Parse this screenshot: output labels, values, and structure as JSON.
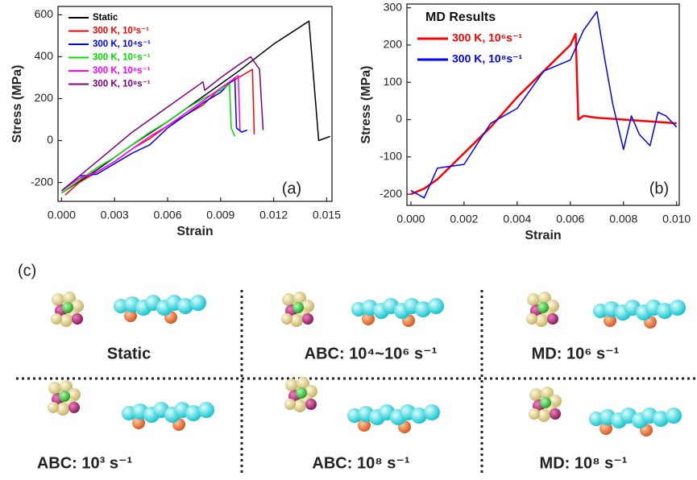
{
  "chart_data": [
    {
      "type": "line",
      "panel_label": "(a)",
      "xlabel": "Strain",
      "ylabel": "Stress (MPa)",
      "legend": "upper left",
      "xlim": [
        -0.0002,
        0.0153
      ],
      "ylim": [
        -290,
        640
      ],
      "xticks": [
        {
          "value": 0,
          "label": "0.000"
        },
        0.003,
        0.006,
        0.009,
        0.012,
        0.015
      ],
      "yticks": [
        -200,
        0,
        200,
        400,
        600
      ],
      "series": [
        {
          "name": "Static",
          "color": "#000000",
          "x": [
            0,
            0.002,
            0.004,
            0.006,
            0.008,
            0.01,
            0.012,
            0.014,
            0.01455,
            0.0152
          ],
          "values": [
            -250,
            -140,
            -20,
            90,
            210,
            330,
            460,
            570,
            0,
            20
          ]
        },
        {
          "name": "300 K, 10³s⁻¹",
          "color": "#ff0000",
          "x": [
            0.0002,
            0.001,
            0.002,
            0.003,
            0.004,
            0.005,
            0.006,
            0.007,
            0.008,
            0.009,
            0.0108,
            0.0109
          ],
          "values": [
            -260,
            -200,
            -150,
            -100,
            -40,
            10,
            70,
            120,
            170,
            250,
            340,
            30
          ]
        },
        {
          "name": "300 K, 10⁴s⁻¹",
          "color": "#0000ff",
          "x": [
            0,
            0.001,
            0.002,
            0.003,
            0.004,
            0.005,
            0.006,
            0.007,
            0.008,
            0.009,
            0.0098,
            0.0099,
            0.0102,
            0.0105
          ],
          "values": [
            -240,
            -170,
            -160,
            -110,
            -60,
            -20,
            60,
            120,
            180,
            230,
            300,
            60,
            40,
            50
          ]
        },
        {
          "name": "300 K, 10⁵s⁻¹",
          "color": "#00dd00",
          "x": [
            0,
            0.001,
            0.002,
            0.003,
            0.004,
            0.005,
            0.006,
            0.007,
            0.008,
            0.009,
            0.0095,
            0.0096,
            0.0098
          ],
          "values": [
            -250,
            -190,
            -130,
            -80,
            -20,
            40,
            90,
            150,
            200,
            240,
            270,
            60,
            20
          ]
        },
        {
          "name": "300 K, 10⁶s⁻¹",
          "color": "#ff00ff",
          "x": [
            0,
            0.001,
            0.002,
            0.003,
            0.004,
            0.005,
            0.006,
            0.007,
            0.008,
            0.009,
            0.01,
            0.0101
          ],
          "values": [
            -240,
            -180,
            -150,
            -100,
            -40,
            20,
            70,
            130,
            190,
            250,
            310,
            50
          ]
        },
        {
          "name": "300 K, 10⁸s⁻¹",
          "color": "#800080",
          "x": [
            0,
            0.001,
            0.002,
            0.003,
            0.004,
            0.005,
            0.006,
            0.007,
            0.008,
            0.0081,
            0.009,
            0.01,
            0.0107,
            0.0112,
            0.0114
          ],
          "values": [
            -240,
            -170,
            -100,
            -30,
            40,
            100,
            160,
            220,
            280,
            240,
            300,
            360,
            400,
            340,
            50
          ]
        }
      ]
    },
    {
      "type": "line",
      "panel_label": "(b)",
      "xlabel": "Strain",
      "ylabel": "Stress (MPa)",
      "legend": "upper left",
      "legend_title": "MD Results",
      "xlim": [
        -0.00015,
        0.0101
      ],
      "ylim": [
        -230,
        310
      ],
      "xticks": [
        {
          "value": 0,
          "label": "0.000"
        },
        0.002,
        0.004,
        0.006,
        0.008,
        {
          "value": 0.01,
          "label": "0.010"
        }
      ],
      "yticks": [
        -200,
        -100,
        0,
        100,
        200,
        300
      ],
      "series": [
        {
          "name": "300 K, 10⁶s⁻¹",
          "color": "#ff0000",
          "x": [
            0,
            0.0005,
            0.001,
            0.002,
            0.003,
            0.004,
            0.005,
            0.006,
            0.0062,
            0.0063,
            0.0065,
            0.007,
            0.008,
            0.009,
            0.01
          ],
          "values": [
            -200,
            -185,
            -160,
            -90,
            -20,
            60,
            130,
            200,
            230,
            0,
            10,
            5,
            0,
            -5,
            -10
          ]
        },
        {
          "name": "300 K, 10⁸s⁻¹",
          "color": "#0000ff",
          "x": [
            0,
            0.0005,
            0.001,
            0.002,
            0.003,
            0.004,
            0.005,
            0.006,
            0.0065,
            0.007,
            0.0073,
            0.0076,
            0.008,
            0.0083,
            0.0086,
            0.009,
            0.0093,
            0.0096,
            0.01
          ],
          "values": [
            -190,
            -210,
            -130,
            -120,
            -10,
            30,
            130,
            160,
            240,
            290,
            160,
            40,
            -80,
            10,
            -40,
            -70,
            20,
            10,
            -20
          ]
        }
      ]
    }
  ],
  "structures": {
    "label": "(c)",
    "cells": [
      "Static",
      "ABC: 10⁴~10⁶ s⁻¹",
      "MD: 10⁶ s⁻¹",
      "ABC: 10³ s⁻¹",
      "ABC: 10⁸ s⁻¹",
      "MD: 10⁸ s⁻¹"
    ]
  }
}
